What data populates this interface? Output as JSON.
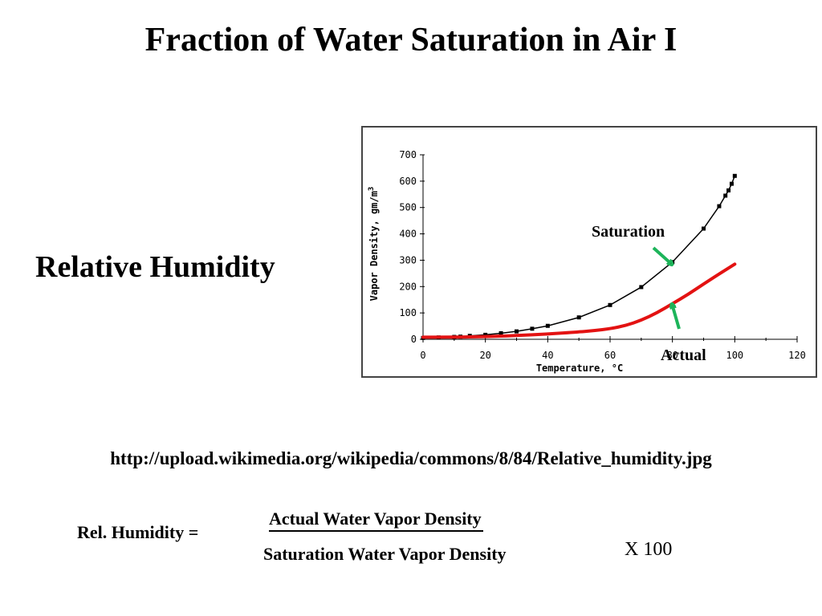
{
  "slide": {
    "title": "Fraction of Water Saturation in Air I",
    "heading": "Relative Humidity",
    "source_url": "http://upload.wikimedia.org/wikipedia/commons/8/84/Relative_humidity.jpg",
    "formula": {
      "label": "Rel. Humidity =",
      "numerator": "Actual Water Vapor Density",
      "denominator": "Saturation Water Vapor Density",
      "multiplier": "X 100"
    }
  },
  "colors": {
    "saturation_series": "#000000",
    "actual_series": "#e31212",
    "arrow": "#1db45a"
  },
  "chart_data": {
    "type": "line",
    "xlabel": "Temperature, °C",
    "ylabel": "Vapor Density, gm/m",
    "ylabel_superscript": "3",
    "xlim": [
      0,
      120
    ],
    "ylim": [
      0,
      700
    ],
    "x_ticks": [
      "0",
      "20",
      "40",
      "60",
      "80",
      "100",
      "120"
    ],
    "y_ticks": [
      "0",
      "100",
      "200",
      "300",
      "400",
      "500",
      "600",
      "700"
    ],
    "grid": false,
    "annotations": [
      {
        "text": "Saturation",
        "target": "saturation"
      },
      {
        "text": "Actual",
        "target": "actual"
      }
    ],
    "series": [
      {
        "name": "Saturation",
        "style": "markers+line",
        "color": "#000000",
        "x": [
          0,
          5,
          10,
          12,
          15,
          20,
          25,
          30,
          35,
          40,
          50,
          60,
          70,
          80,
          90,
          95,
          97,
          98,
          99,
          100
        ],
        "y": [
          5,
          7,
          9,
          10,
          13,
          17,
          23,
          30,
          40,
          51,
          83,
          130,
          198,
          293,
          420,
          505,
          545,
          565,
          590,
          620
        ]
      },
      {
        "name": "Actual",
        "style": "line",
        "color": "#e31212",
        "x": [
          0,
          10,
          20,
          30,
          40,
          50,
          55,
          60,
          65,
          70,
          75,
          80,
          85,
          90,
          95,
          100
        ],
        "y": [
          8,
          8,
          10,
          14,
          20,
          28,
          33,
          40,
          52,
          72,
          100,
          135,
          170,
          210,
          248,
          285
        ]
      }
    ]
  }
}
